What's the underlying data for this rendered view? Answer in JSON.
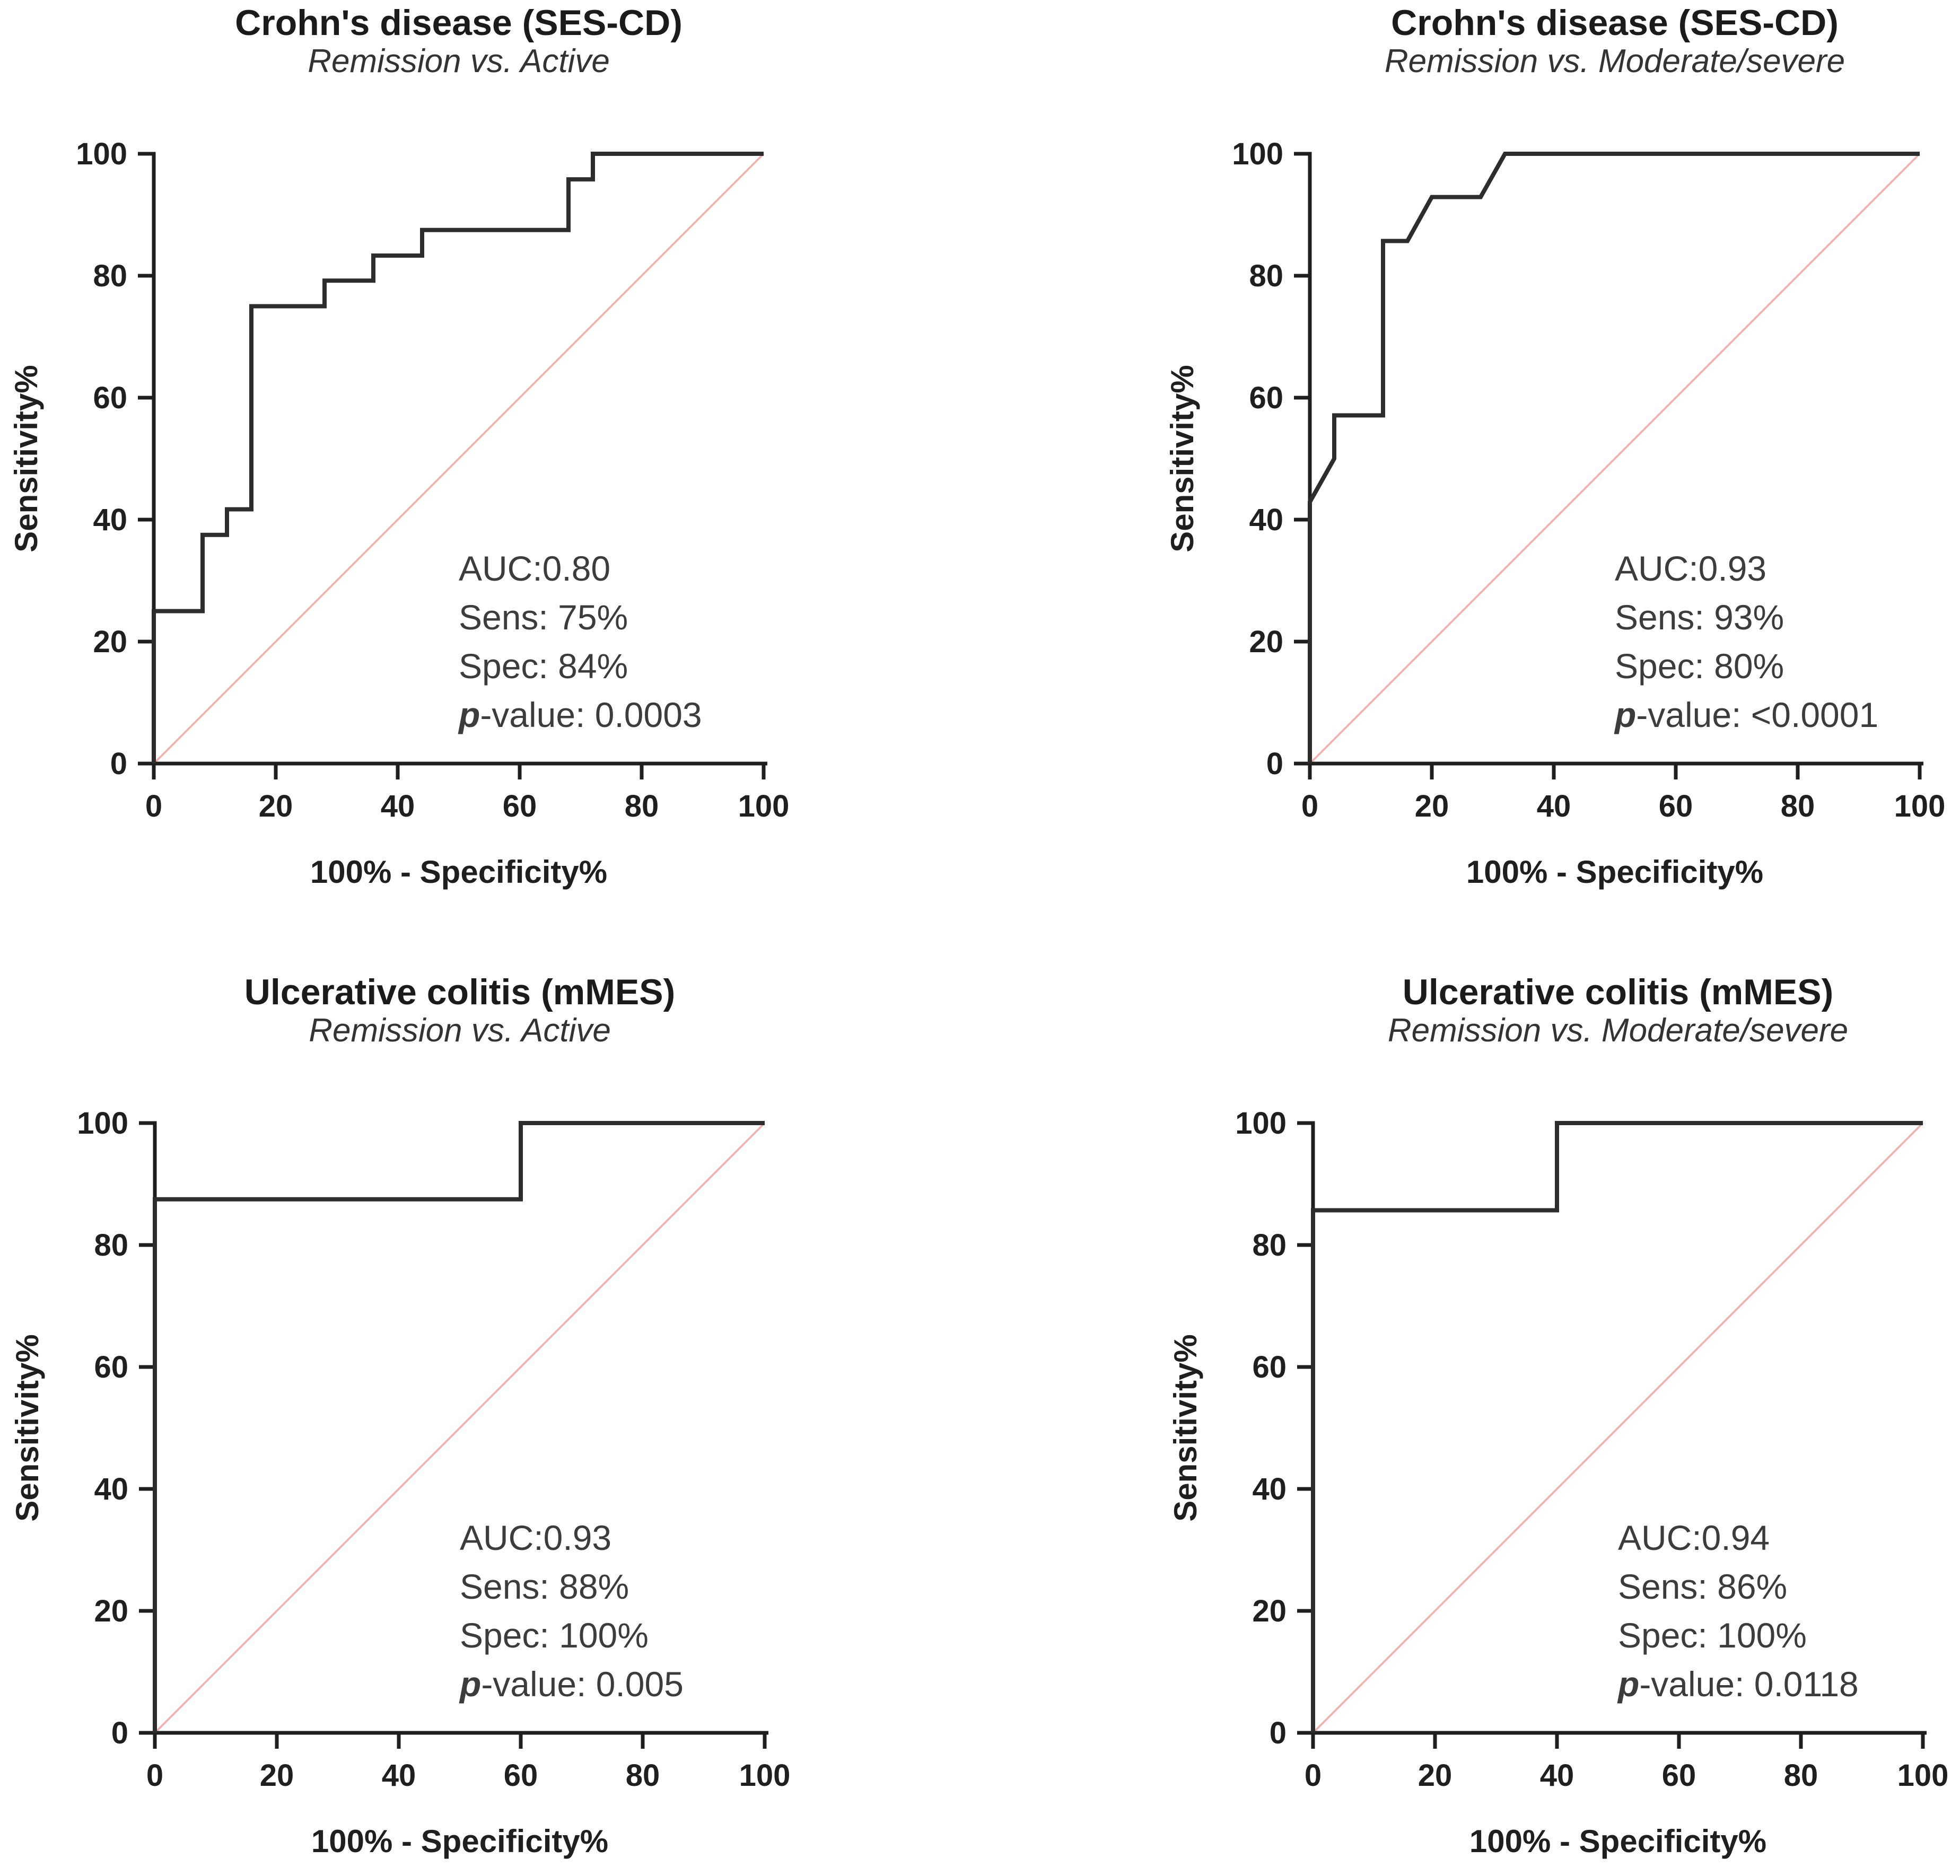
{
  "colors": {
    "curve": "#2d2d2d",
    "axis": "#1f1f1f",
    "tick_label": "#1f1f1f",
    "reference_line": "#f8aea7",
    "annotation_text": "#3c3c3c",
    "title_text": "#1b1b1b",
    "background": "#ffffff"
  },
  "chart_data": [
    {
      "type": "line",
      "panel": "top-left",
      "title": "Crohn's disease (SES-CD)",
      "subtitle": "Remission vs. Active",
      "xlabel": "100% - Specificity%",
      "ylabel": "Sensitivity%",
      "xlim": [
        0,
        100
      ],
      "ylim": [
        0,
        100
      ],
      "xticks": [
        0,
        20,
        40,
        60,
        80,
        100
      ],
      "yticks": [
        0,
        20,
        40,
        60,
        80,
        100
      ],
      "grid": false,
      "legend": "none",
      "roc_points": [
        [
          0,
          0
        ],
        [
          0,
          25
        ],
        [
          8,
          25
        ],
        [
          8,
          37.5
        ],
        [
          12,
          37.5
        ],
        [
          12,
          41.7
        ],
        [
          16,
          41.7
        ],
        [
          16,
          75
        ],
        [
          28,
          75
        ],
        [
          28,
          79.2
        ],
        [
          36,
          79.2
        ],
        [
          36,
          83.3
        ],
        [
          44,
          83.3
        ],
        [
          44,
          87.5
        ],
        [
          68,
          87.5
        ],
        [
          68,
          95.8
        ],
        [
          72,
          95.8
        ],
        [
          72,
          100
        ],
        [
          100,
          100
        ]
      ],
      "reference_line": [
        [
          0,
          0
        ],
        [
          100,
          100
        ]
      ],
      "annotation_anchor": {
        "x": 50,
        "y": 30
      },
      "stats": {
        "auc": "AUC:0.80",
        "sens": "Sens: 75%",
        "spec": "Spec: 84%",
        "p_prefix": "p",
        "p_suffix": "-value: 0.0003"
      }
    },
    {
      "type": "line",
      "panel": "top-right",
      "title": "Crohn's disease (SES-CD)",
      "subtitle": "Remission vs. Moderate/severe",
      "xlabel": "100% - Specificity%",
      "ylabel": "Sensitivity%",
      "xlim": [
        0,
        100
      ],
      "ylim": [
        0,
        100
      ],
      "xticks": [
        0,
        20,
        40,
        60,
        80,
        100
      ],
      "yticks": [
        0,
        20,
        40,
        60,
        80,
        100
      ],
      "grid": false,
      "legend": "none",
      "roc_points": [
        [
          0,
          0
        ],
        [
          0,
          42.9
        ],
        [
          4,
          50
        ],
        [
          4,
          57.1
        ],
        [
          12,
          57.1
        ],
        [
          12,
          85.7
        ],
        [
          16,
          85.7
        ],
        [
          20,
          92.9
        ],
        [
          28,
          92.9
        ],
        [
          32,
          100
        ],
        [
          100,
          100
        ]
      ],
      "reference_line": [
        [
          0,
          0
        ],
        [
          100,
          100
        ]
      ],
      "annotation_anchor": {
        "x": 50,
        "y": 30
      },
      "stats": {
        "auc": "AUC:0.93",
        "sens": "Sens: 93%",
        "spec": "Spec: 80%",
        "p_prefix": "p",
        "p_suffix": "-value: <0.0001"
      }
    },
    {
      "type": "line",
      "panel": "bottom-left",
      "title": "Ulcerative colitis (mMES)",
      "subtitle": "Remission vs. Active",
      "xlabel": "100% - Specificity%",
      "ylabel": "Sensitivity%",
      "xlim": [
        0,
        100
      ],
      "ylim": [
        0,
        100
      ],
      "xticks": [
        0,
        20,
        40,
        60,
        80,
        100
      ],
      "yticks": [
        0,
        20,
        40,
        60,
        80,
        100
      ],
      "grid": false,
      "legend": "none",
      "roc_points": [
        [
          0,
          0
        ],
        [
          0,
          87.5
        ],
        [
          60,
          87.5
        ],
        [
          60,
          100
        ],
        [
          100,
          100
        ]
      ],
      "reference_line": [
        [
          0,
          0
        ],
        [
          100,
          100
        ]
      ],
      "annotation_anchor": {
        "x": 50,
        "y": 30
      },
      "stats": {
        "auc": "AUC:0.93",
        "sens": "Sens: 88%",
        "spec": "Spec: 100%",
        "p_prefix": "p",
        "p_suffix": "-value: 0.005"
      }
    },
    {
      "type": "line",
      "panel": "bottom-right",
      "title": "Ulcerative colitis (mMES)",
      "subtitle": "Remission vs. Moderate/severe",
      "xlabel": "100% - Specificity%",
      "ylabel": "Sensitivity%",
      "xlim": [
        0,
        100
      ],
      "ylim": [
        0,
        100
      ],
      "xticks": [
        0,
        20,
        40,
        60,
        80,
        100
      ],
      "yticks": [
        0,
        20,
        40,
        60,
        80,
        100
      ],
      "grid": false,
      "legend": "none",
      "roc_points": [
        [
          0,
          0
        ],
        [
          0,
          85.7
        ],
        [
          40,
          85.7
        ],
        [
          40,
          100
        ],
        [
          100,
          100
        ]
      ],
      "reference_line": [
        [
          0,
          0
        ],
        [
          100,
          100
        ]
      ],
      "annotation_anchor": {
        "x": 50,
        "y": 30
      },
      "stats": {
        "auc": "AUC:0.94",
        "sens": "Sens: 86%",
        "spec": "Spec: 100%",
        "p_prefix": "p",
        "p_suffix": "-value: 0.0118"
      }
    }
  ]
}
